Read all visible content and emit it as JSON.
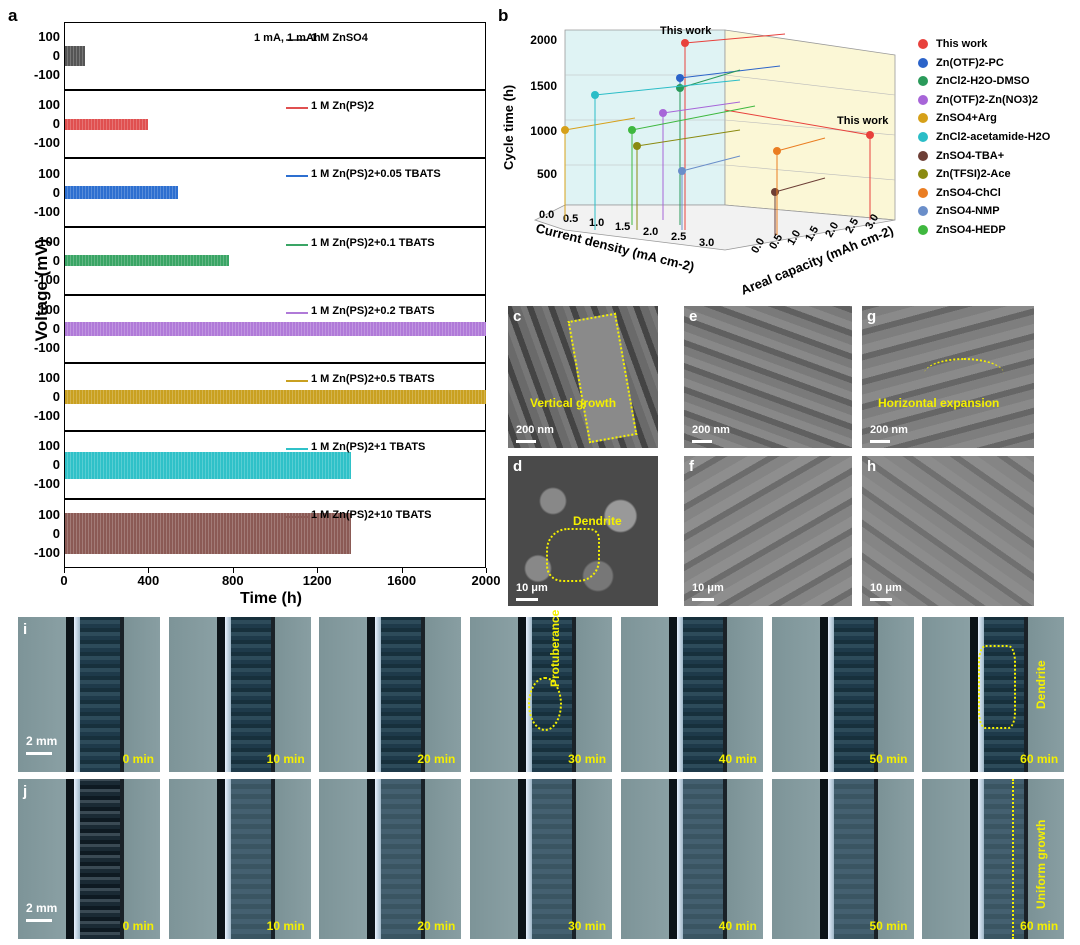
{
  "panels": {
    "a": "a",
    "b": "b",
    "c": "c",
    "d": "d",
    "e": "e",
    "f": "f",
    "g": "g",
    "h": "h",
    "i": "i",
    "j": "j"
  },
  "panel_a": {
    "ylabel": "Voltage (mV)",
    "xlabel": "Time (h)",
    "condition": "1 mA, 1 mAh",
    "yticks": [
      "100",
      "0",
      "-100"
    ],
    "xticks": [
      "0",
      "400",
      "800",
      "1200",
      "1600",
      "2000"
    ]
  },
  "chart_data": [
    {
      "type": "line",
      "title": "",
      "xlabel": "Time (h)",
      "ylabel": "Voltage (mV)",
      "xlim": [
        0,
        2000
      ],
      "ylim": [
        -150,
        150
      ],
      "series": [
        {
          "name": "1 M ZnSO4",
          "color": "#555555",
          "end_time": 100,
          "amplitude": 45
        },
        {
          "name": "1 M Zn(PS)2",
          "color": "#e05050",
          "end_time": 400,
          "amplitude": 25
        },
        {
          "name": "1 M Zn(PS)2+0.05 TBATS",
          "color": "#2d6fd0",
          "end_time": 540,
          "amplitude": 30
        },
        {
          "name": "1 M Zn(PS)2+0.1 TBATS",
          "color": "#3aa565",
          "end_time": 780,
          "amplitude": 25
        },
        {
          "name": "1 M Zn(PS)2+0.2 TBATS",
          "color": "#b07ad8",
          "end_time": 2000,
          "amplitude": 30
        },
        {
          "name": "1 M Zn(PS)2+0.5 TBATS",
          "color": "#c9a020",
          "end_time": 2000,
          "amplitude": 30
        },
        {
          "name": "1 M Zn(PS)2+1 TBATS",
          "color": "#2fc1c8",
          "end_time": 1360,
          "amplitude": 60
        },
        {
          "name": "1 M Zn(PS)2+10 TBATS",
          "color": "#8b5a55",
          "end_time": 1360,
          "amplitude": 90
        }
      ]
    },
    {
      "type": "scatter",
      "title": "",
      "xlabel": "Current density (mA cm-2)",
      "ylabel": "Cycle time (h)",
      "zlabel": "Areal capacity (mAh cm-2)",
      "yticks": [
        "500",
        "1000",
        "1500",
        "2000"
      ],
      "xticks": [
        "0.0",
        "0.5",
        "1.0",
        "1.5",
        "2.0",
        "2.5",
        "3.0"
      ],
      "zticks": [
        "0.0",
        "0.5",
        "1.0",
        "1.5",
        "2.0",
        "2.5",
        "3.0"
      ],
      "annotations": [
        "This work",
        "This work"
      ]
    }
  ],
  "legend_b": [
    {
      "label": "This work",
      "color": "#e8413c"
    },
    {
      "label": "Zn(OTF)2-PC",
      "color": "#2b63c9"
    },
    {
      "label": "ZnCl2-H2O-DMSO",
      "color": "#2a9a5a"
    },
    {
      "label": "Zn(OTF)2-Zn(NO3)2",
      "color": "#a765d8"
    },
    {
      "label": "ZnSO4+Arg",
      "color": "#d6a019"
    },
    {
      "label": "ZnCl2-acetamide-H2O",
      "color": "#2bbdc7"
    },
    {
      "label": "ZnSO4-TBA+",
      "color": "#6d3f36"
    },
    {
      "label": "Zn(TFSI)2-Ace",
      "color": "#8a8a10"
    },
    {
      "label": "ZnSO4-ChCl",
      "color": "#ea7d22"
    },
    {
      "label": "ZnSO4-NMP",
      "color": "#6a8ec9"
    },
    {
      "label": "ZnSO4-HEDP",
      "color": "#3fb83f"
    }
  ],
  "sem": {
    "c": {
      "label": "Vertical growth",
      "scale": "200 nm"
    },
    "d": {
      "label": "Dendrite",
      "scale": "10 μm"
    },
    "e": {
      "label": "",
      "scale": "200 nm"
    },
    "f": {
      "label": "",
      "scale": "10 μm"
    },
    "g": {
      "label": "Horizontal expansion",
      "scale": "200 nm"
    },
    "h": {
      "label": "",
      "scale": "10 μm"
    }
  },
  "optical": {
    "scale": "2 mm",
    "times": [
      "0 min",
      "10 min",
      "20 min",
      "30 min",
      "40 min",
      "50 min",
      "60 min"
    ],
    "i_labels": {
      "protuberance": "Protuberance",
      "dendrite": "Dendrite"
    },
    "j_labels": {
      "uniform": "Uniform growth"
    }
  }
}
